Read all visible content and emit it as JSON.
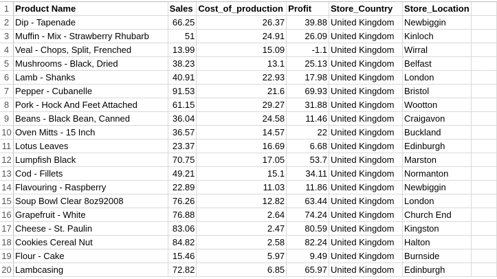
{
  "headers": [
    "Product Name",
    "Sales",
    "Cost_of_production",
    "Profit",
    "Store_Country",
    "Store_Location"
  ],
  "rows": [
    [
      "Dip - Tapenade",
      "66.25",
      "26.37",
      "39.88",
      "United Kingdom",
      "Newbiggin"
    ],
    [
      "Muffin - Mix - Strawberry Rhubarb",
      "51",
      "24.91",
      "26.09",
      "United Kingdom",
      "Kinloch"
    ],
    [
      "Veal - Chops, Split, Frenched",
      "13.99",
      "15.09",
      "-1.1",
      "United Kingdom",
      "Wirral"
    ],
    [
      "Mushrooms - Black, Dried",
      "38.23",
      "13.1",
      "25.13",
      "United Kingdom",
      "Belfast"
    ],
    [
      "Lamb - Shanks",
      "40.91",
      "22.93",
      "17.98",
      "United Kingdom",
      "London"
    ],
    [
      "Pepper - Cubanelle",
      "91.53",
      "21.6",
      "69.93",
      "United Kingdom",
      "Bristol"
    ],
    [
      "Pork - Hock And Feet Attached",
      "61.15",
      "29.27",
      "31.88",
      "United Kingdom",
      "Wootton"
    ],
    [
      "Beans - Black Bean, Canned",
      "36.04",
      "24.58",
      "11.46",
      "United Kingdom",
      "Craigavon"
    ],
    [
      "Oven Mitts - 15 Inch",
      "36.57",
      "14.57",
      "22",
      "United Kingdom",
      "Buckland"
    ],
    [
      "Lotus Leaves",
      "23.37",
      "16.69",
      "6.68",
      "United Kingdom",
      "Edinburgh"
    ],
    [
      "Lumpfish Black",
      "70.75",
      "17.05",
      "53.7",
      "United Kingdom",
      "Marston"
    ],
    [
      "Cod - Fillets",
      "49.21",
      "15.1",
      "34.11",
      "United Kingdom",
      "Normanton"
    ],
    [
      "Flavouring - Raspberry",
      "22.89",
      "11.03",
      "11.86",
      "United Kingdom",
      "Newbiggin"
    ],
    [
      "Soup Bowl Clear 8oz92008",
      "76.26",
      "12.82",
      "63.44",
      "United Kingdom",
      "London"
    ],
    [
      "Grapefruit - White",
      "76.88",
      "2.64",
      "74.24",
      "United Kingdom",
      "Church End"
    ],
    [
      "Cheese - St. Paulin",
      "83.06",
      "2.47",
      "80.59",
      "United Kingdom",
      "Kingston"
    ],
    [
      "Cookies Cereal Nut",
      "84.82",
      "2.58",
      "82.24",
      "United Kingdom",
      "Halton"
    ],
    [
      "Flour - Cake",
      "15.46",
      "5.97",
      "9.49",
      "United Kingdom",
      "Burnside"
    ],
    [
      "Lambcasing",
      "72.82",
      "6.85",
      "65.97",
      "United Kingdom",
      "Edinburgh"
    ]
  ]
}
